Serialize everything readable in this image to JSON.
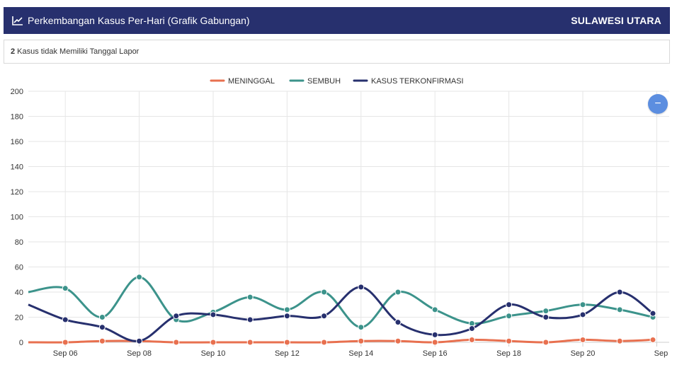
{
  "header": {
    "title": "Perkembangan Kasus Per-Hari (Grafik Gabungan)",
    "region": "SULAWESI UTARA",
    "chart_icon": "line-chart-icon"
  },
  "note": {
    "count": "2",
    "text": "Kasus tidak Memiliki Tanggal Lapor"
  },
  "fab": {
    "icon": "minus-icon",
    "symbol": "−"
  },
  "chart_data": {
    "type": "line",
    "x": [
      "Sep 05",
      "Sep 06",
      "Sep 07",
      "Sep 08",
      "Sep 09",
      "Sep 10",
      "Sep 11",
      "Sep 12",
      "Sep 13",
      "Sep 14",
      "Sep 15",
      "Sep 16",
      "Sep 17",
      "Sep 18",
      "Sep 19",
      "Sep 20",
      "Sep 21"
    ],
    "x_tick_labels": [
      "Sep 06",
      "Sep 08",
      "Sep 10",
      "Sep 12",
      "Sep 14",
      "Sep 16",
      "Sep 18",
      "Sep 20",
      "Sep"
    ],
    "ylim": [
      0,
      200
    ],
    "y_ticks": [
      0,
      20,
      40,
      60,
      80,
      100,
      120,
      140,
      160,
      180,
      200
    ],
    "grid": true,
    "legend_position": "top-center",
    "series": [
      {
        "name": "MENINGGAL",
        "color": "#e8704f",
        "values": [
          0,
          0,
          1,
          1,
          0,
          0,
          0,
          0,
          0,
          1,
          1,
          0,
          2,
          1,
          0,
          2,
          1
        ]
      },
      {
        "name": "SEMBUH",
        "color": "#3c938b",
        "values": [
          40,
          43,
          20,
          52,
          18,
          24,
          36,
          26,
          40,
          12,
          40,
          26,
          15,
          21,
          25,
          30,
          26
        ]
      },
      {
        "name": "KASUS TERKONFIRMASI",
        "color": "#27306e",
        "values": [
          30,
          18,
          12,
          1,
          21,
          22,
          18,
          21,
          21,
          44,
          16,
          6,
          11,
          30,
          20,
          22,
          40
        ]
      }
    ],
    "final_points": {
      "MENINGGAL": 2,
      "SEMBUH": 20,
      "KASUS TERKONFIRMASI": 23
    }
  }
}
